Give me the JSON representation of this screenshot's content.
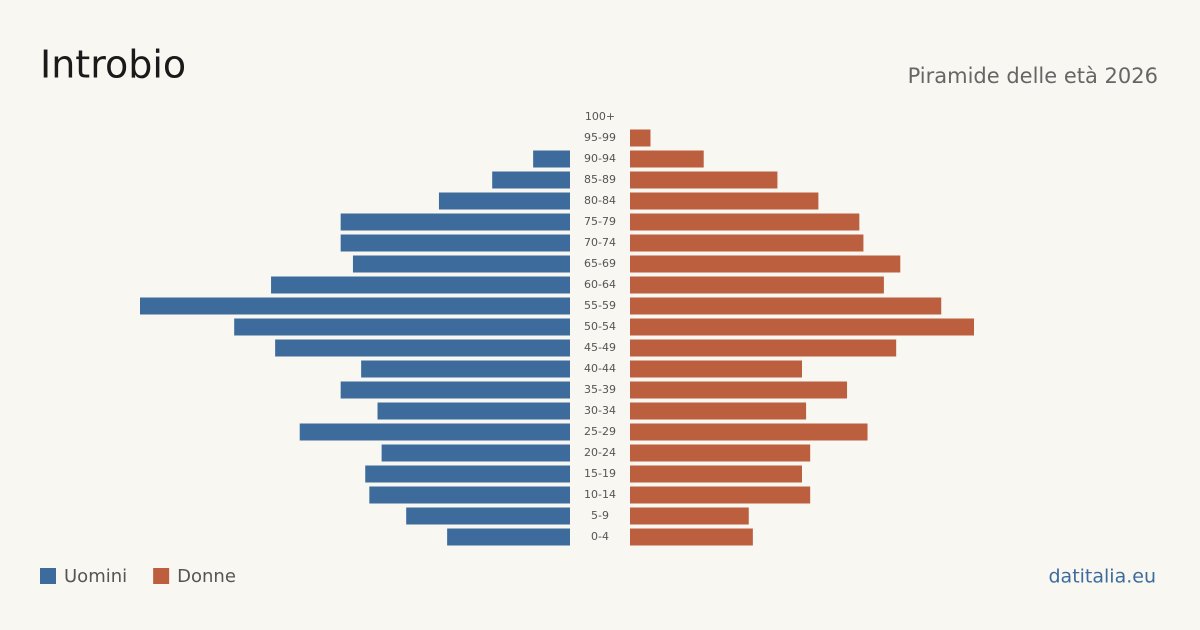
{
  "chart_data": {
    "type": "pyramid",
    "title": "Introbio",
    "subtitle": "Piramide delle età 2026",
    "source": "datitalia.eu",
    "categories": [
      "100+",
      "95-99",
      "90-94",
      "85-89",
      "80-84",
      "75-79",
      "70-74",
      "65-69",
      "60-64",
      "55-59",
      "50-54",
      "45-49",
      "40-44",
      "35-39",
      "30-34",
      "25-29",
      "20-24",
      "15-19",
      "10-14",
      "5-9",
      "0-4"
    ],
    "series": [
      {
        "name": "Uomini",
        "color": "#3d6b9c",
        "values": [
          0,
          0,
          9,
          19,
          32,
          56,
          56,
          53,
          73,
          105,
          82,
          72,
          51,
          56,
          47,
          66,
          46,
          50,
          49,
          40,
          30
        ]
      },
      {
        "name": "Donne",
        "color": "#bb5f3f",
        "values": [
          0,
          5,
          18,
          36,
          46,
          56,
          57,
          66,
          62,
          76,
          84,
          65,
          42,
          53,
          43,
          58,
          44,
          42,
          44,
          29,
          30
        ]
      }
    ]
  }
}
